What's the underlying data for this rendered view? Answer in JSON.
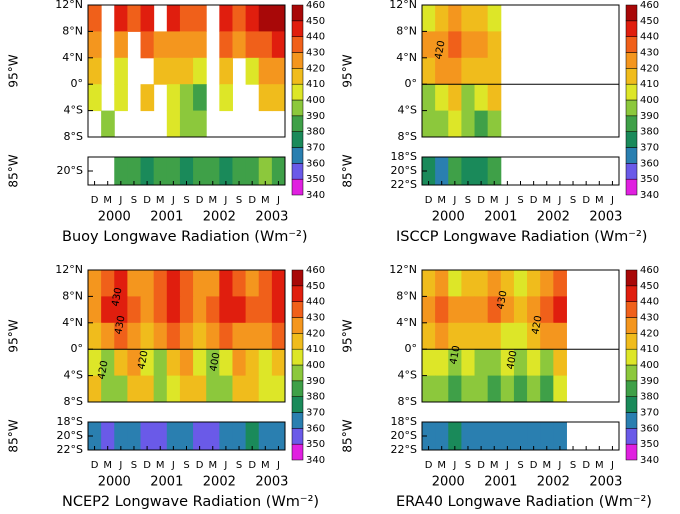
{
  "colorbar": {
    "levels": [
      340,
      350,
      360,
      370,
      380,
      390,
      400,
      410,
      420,
      430,
      440,
      450,
      460
    ],
    "colors": [
      "#e020e0",
      "#6a5ae8",
      "#2a7fb0",
      "#1a8a5a",
      "#3fa048",
      "#8cc83c",
      "#dde628",
      "#f0bc1c",
      "#f4961e",
      "#f0601a",
      "#e01e0e",
      "#a80808"
    ]
  },
  "time_axis": {
    "months": [
      "D",
      "M",
      "J",
      "S",
      "D",
      "M",
      "J",
      "S",
      "D",
      "M",
      "J",
      "S",
      "D",
      "M",
      "J"
    ],
    "years": [
      "2000",
      "2001",
      "2002",
      "2003"
    ]
  },
  "chart_data": [
    {
      "type": "heatmap",
      "title": "Buoy Longwave Radiation (Wm⁻²)",
      "upper_label": "95°W",
      "lower_label": "85°W",
      "ylim": [
        -8,
        12
      ],
      "yticks": [
        {
          "value": 12,
          "label": "12°N"
        },
        {
          "value": 8,
          "label": "8°N"
        },
        {
          "value": 4,
          "label": "4°N"
        },
        {
          "value": 0,
          "label": "0°"
        },
        {
          "value": -4,
          "label": "4°S"
        },
        {
          "value": -8,
          "label": "8°S"
        }
      ],
      "lower_ylim": [
        -22,
        -18
      ],
      "lower_yticks": [
        {
          "value": -20,
          "label": "20°S"
        }
      ],
      "zero_line": false,
      "values": [
        [
          430,
          null,
          440,
          430,
          440,
          null,
          440,
          430,
          430,
          null,
          440,
          430,
          440,
          450,
          450
        ],
        [
          420,
          null,
          420,
          null,
          430,
          420,
          420,
          420,
          420,
          null,
          430,
          420,
          430,
          430,
          440
        ],
        [
          410,
          null,
          400,
          null,
          null,
          410,
          410,
          410,
          400,
          null,
          410,
          null,
          400,
          420,
          420
        ],
        [
          400,
          null,
          400,
          null,
          410,
          null,
          400,
          390,
          380,
          null,
          400,
          null,
          null,
          410,
          410
        ],
        [
          null,
          390,
          null,
          null,
          null,
          null,
          400,
          390,
          390,
          null,
          null,
          null,
          null,
          null,
          null
        ]
      ],
      "lower_values": [
        null,
        null,
        380,
        380,
        370,
        380,
        380,
        370,
        380,
        380,
        370,
        380,
        380,
        390,
        380
      ],
      "annotations": []
    },
    {
      "type": "heatmap",
      "title": "ISCCP Longwave Radiation (Wm⁻²)",
      "upper_label": "95°W",
      "lower_label": "85°W",
      "ylim": [
        -8,
        12
      ],
      "yticks": [
        {
          "value": 12,
          "label": "12°N"
        },
        {
          "value": 8,
          "label": "8°N"
        },
        {
          "value": 4,
          "label": "4°N"
        },
        {
          "value": 0,
          "label": "0°"
        },
        {
          "value": -4,
          "label": "4°S"
        },
        {
          "value": -8,
          "label": "8°S"
        }
      ],
      "lower_ylim": [
        -22,
        -18
      ],
      "lower_yticks": [
        {
          "value": -18,
          "label": "18°S"
        },
        {
          "value": -20,
          "label": "20°S"
        },
        {
          "value": -22,
          "label": "22°S"
        }
      ],
      "zero_line": true,
      "values": [
        [
          400,
          410,
          420,
          410,
          410,
          400,
          null,
          null,
          null,
          null,
          null,
          null,
          null,
          null,
          null
        ],
        [
          420,
          420,
          430,
          420,
          420,
          410,
          null,
          null,
          null,
          null,
          null,
          null,
          null,
          null,
          null
        ],
        [
          410,
          420,
          420,
          410,
          410,
          410,
          null,
          null,
          null,
          null,
          null,
          null,
          null,
          null,
          null
        ],
        [
          390,
          400,
          410,
          390,
          400,
          410,
          null,
          null,
          null,
          null,
          null,
          null,
          null,
          null,
          null
        ],
        [
          390,
          390,
          400,
          390,
          380,
          390,
          null,
          null,
          null,
          null,
          null,
          null,
          null,
          null,
          null
        ]
      ],
      "lower_values": [
        370,
        360,
        380,
        370,
        370,
        380,
        null,
        null,
        null,
        null,
        null,
        null,
        null,
        null,
        null
      ],
      "annotations": [
        "420"
      ]
    },
    {
      "type": "heatmap",
      "title": "NCEP2 Longwave Radiation (Wm⁻²)",
      "upper_label": "95°W",
      "lower_label": "85°W",
      "ylim": [
        -8,
        12
      ],
      "yticks": [
        {
          "value": 12,
          "label": "12°N"
        },
        {
          "value": 8,
          "label": "8°N"
        },
        {
          "value": 4,
          "label": "4°N"
        },
        {
          "value": 0,
          "label": "0°"
        },
        {
          "value": -4,
          "label": "4°S"
        },
        {
          "value": -8,
          "label": "8°S"
        }
      ],
      "lower_ylim": [
        -22,
        -18
      ],
      "lower_yticks": [
        {
          "value": -18,
          "label": "18°S"
        },
        {
          "value": -20,
          "label": "20°S"
        },
        {
          "value": -22,
          "label": "22°S"
        }
      ],
      "zero_line": true,
      "values": [
        [
          420,
          430,
          440,
          420,
          420,
          430,
          440,
          430,
          420,
          420,
          440,
          430,
          420,
          430,
          440
        ],
        [
          420,
          440,
          440,
          430,
          420,
          430,
          440,
          430,
          420,
          430,
          440,
          440,
          430,
          430,
          440
        ],
        [
          410,
          420,
          430,
          420,
          410,
          420,
          430,
          420,
          410,
          420,
          430,
          420,
          420,
          420,
          430
        ],
        [
          400,
          390,
          410,
          420,
          400,
          390,
          410,
          420,
          400,
          390,
          400,
          420,
          410,
          400,
          410
        ],
        [
          410,
          390,
          390,
          410,
          410,
          390,
          400,
          410,
          410,
          390,
          390,
          410,
          410,
          400,
          400
        ]
      ],
      "lower_values": [
        360,
        350,
        360,
        360,
        350,
        350,
        360,
        360,
        350,
        350,
        360,
        360,
        370,
        360,
        360
      ],
      "annotations": [
        "430",
        "430",
        "420",
        "420",
        "400"
      ]
    },
    {
      "type": "heatmap",
      "title": "ERA40 Longwave Radiation (Wm⁻²)",
      "upper_label": "95°W",
      "lower_label": "85°W",
      "ylim": [
        -8,
        12
      ],
      "yticks": [
        {
          "value": 12,
          "label": "12°N"
        },
        {
          "value": 8,
          "label": "8°N"
        },
        {
          "value": 4,
          "label": "4°N"
        },
        {
          "value": 0,
          "label": "0°"
        },
        {
          "value": -4,
          "label": "4°S"
        },
        {
          "value": -8,
          "label": "8°S"
        }
      ],
      "lower_ylim": [
        -22,
        -18
      ],
      "lower_yticks": [
        {
          "value": -18,
          "label": "18°S"
        },
        {
          "value": -20,
          "label": "20°S"
        },
        {
          "value": -22,
          "label": "22°S"
        }
      ],
      "zero_line": true,
      "values": [
        [
          410,
          420,
          400,
          410,
          410,
          420,
          410,
          400,
          410,
          420,
          430,
          null,
          null,
          null,
          null
        ],
        [
          420,
          430,
          420,
          420,
          420,
          430,
          420,
          410,
          420,
          430,
          440,
          null,
          null,
          null,
          null
        ],
        [
          410,
          420,
          410,
          410,
          410,
          410,
          400,
          400,
          410,
          420,
          420,
          null,
          null,
          null,
          null
        ],
        [
          400,
          400,
          390,
          400,
          390,
          390,
          400,
          390,
          400,
          390,
          410,
          null,
          null,
          null,
          null
        ],
        [
          390,
          390,
          380,
          390,
          390,
          380,
          390,
          380,
          390,
          380,
          400,
          null,
          null,
          null,
          null
        ]
      ],
      "lower_values": [
        360,
        360,
        370,
        360,
        360,
        360,
        360,
        360,
        360,
        360,
        360,
        null,
        null,
        null,
        null
      ],
      "annotations": [
        "430",
        "420",
        "410",
        "400"
      ]
    }
  ]
}
